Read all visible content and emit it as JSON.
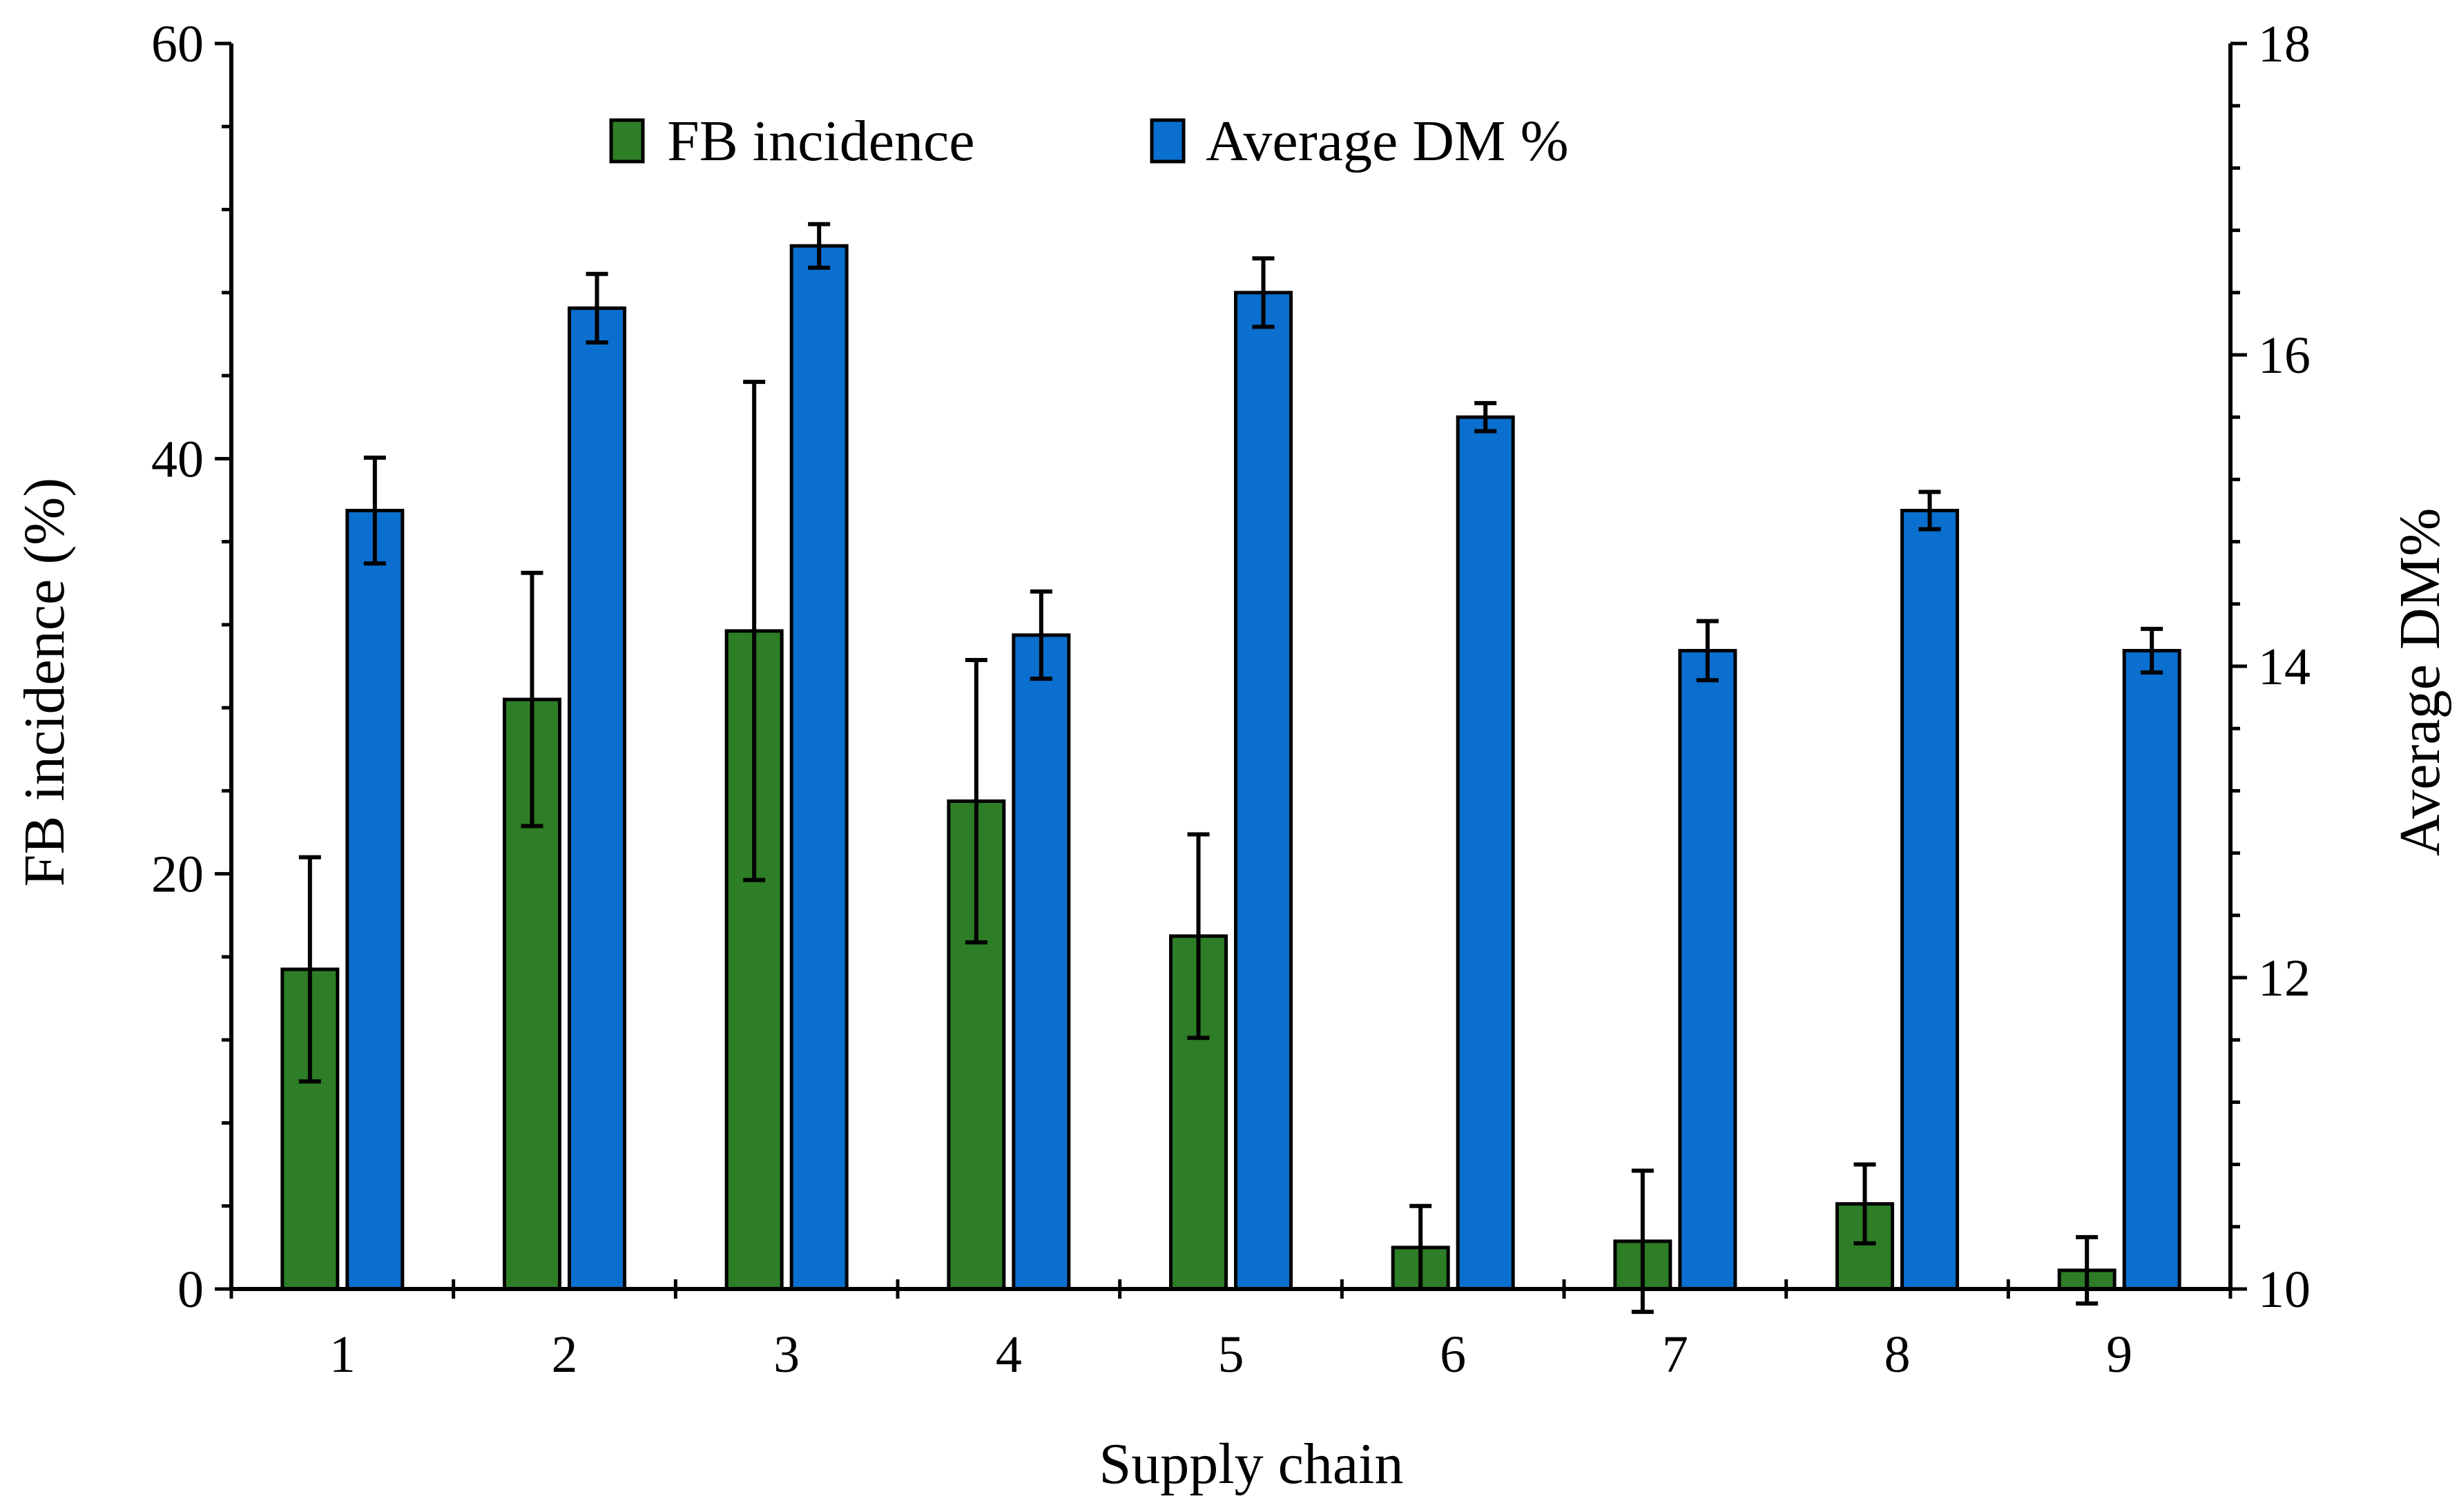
{
  "chart_data": {
    "type": "bar",
    "title": "",
    "xlabel": "Supply chain",
    "ylabel": "FB incidence (%)",
    "y2label": "Average DM%",
    "categories": [
      "1",
      "2",
      "3",
      "4",
      "5",
      "6",
      "7",
      "8",
      "9"
    ],
    "ylim": [
      0,
      60
    ],
    "y2lim": [
      10,
      18
    ],
    "yticks": [
      0,
      20,
      40,
      60
    ],
    "y2ticks": [
      10,
      12,
      14,
      16,
      18
    ],
    "legend_position": "top-center",
    "series": [
      {
        "name": "FB incidence",
        "axis": "left",
        "color": "#2e7d27",
        "values": [
          15.4,
          28.4,
          31.7,
          23.5,
          17.0,
          2.0,
          2.3,
          4.1,
          0.9
        ],
        "errors": [
          5.4,
          6.1,
          12.0,
          6.8,
          4.9,
          2.0,
          3.4,
          1.9,
          1.6
        ]
      },
      {
        "name": "Average DM %",
        "axis": "right",
        "color": "#0a6fce",
        "values": [
          15.0,
          16.3,
          16.7,
          14.2,
          16.4,
          15.6,
          14.1,
          15.0,
          14.1
        ],
        "errors": [
          0.34,
          0.22,
          0.14,
          0.28,
          0.22,
          0.09,
          0.19,
          0.12,
          0.14
        ]
      }
    ]
  }
}
